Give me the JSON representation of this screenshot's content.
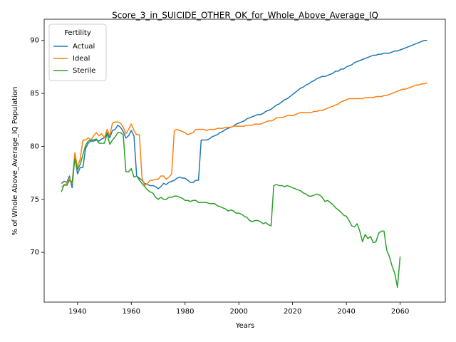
{
  "chart_data": {
    "type": "line",
    "title": "Score_3_in_SUICIDE_OTHER_OK_for_Whole_Above_Average_IQ",
    "xlabel": "Years",
    "ylabel": "% of Whole Above_Average_IQ Population",
    "legend_title": "Fertility",
    "legend": "upper left",
    "grid": false,
    "xlim": [
      1927.6,
      2076.8
    ],
    "ylim": [
      65.3,
      92.0
    ],
    "xticks": [
      1940,
      1960,
      1980,
      2000,
      2020,
      2040,
      2060
    ],
    "yticks": [
      70,
      75,
      80,
      85,
      90
    ],
    "x": [
      1934,
      1935,
      1936,
      1937,
      1938,
      1939,
      1940,
      1941,
      1942,
      1943,
      1944,
      1945,
      1946,
      1947,
      1948,
      1949,
      1950,
      1951,
      1952,
      1953,
      1954,
      1955,
      1956,
      1957,
      1958,
      1959,
      1960,
      1961,
      1962,
      1963,
      1964,
      1965,
      1966,
      1967,
      1968,
      1969,
      1970,
      1971,
      1972,
      1973,
      1974,
      1975,
      1976,
      1977,
      1978,
      1979,
      1980,
      1981,
      1982,
      1983,
      1984,
      1985,
      1986,
      1987,
      1988,
      1989,
      1990,
      1991,
      1992,
      1993,
      1994,
      1995,
      1996,
      1997,
      1998,
      1999,
      2000,
      2001,
      2002,
      2003,
      2004,
      2005,
      2006,
      2007,
      2008,
      2009,
      2010,
      2011,
      2012,
      2013,
      2014,
      2015,
      2016,
      2017,
      2018,
      2019,
      2020,
      2021,
      2022,
      2023,
      2024,
      2025,
      2026,
      2027,
      2028,
      2029,
      2030,
      2031,
      2032,
      2033,
      2034,
      2035,
      2036,
      2037,
      2038,
      2039,
      2040,
      2041,
      2042,
      2043,
      2044,
      2045,
      2046,
      2047,
      2048,
      2049,
      2050,
      2051,
      2052,
      2053,
      2054,
      2055,
      2056,
      2057,
      2058,
      2059,
      2060,
      2061,
      2062,
      2063,
      2064,
      2065,
      2066,
      2067,
      2068,
      2069,
      2070
    ],
    "series": [
      {
        "name": "Actual",
        "color": "#1f77b4",
        "values": [
          76.5,
          76.7,
          76.6,
          77.2,
          76.1,
          79.0,
          77.4,
          78.0,
          78.0,
          79.8,
          80.3,
          80.5,
          80.5,
          80.6,
          80.5,
          80.7,
          80.8,
          81.3,
          80.8,
          81.5,
          81.6,
          82.0,
          81.8,
          81.4,
          80.8,
          81.0,
          81.5,
          81.0,
          77.2,
          77.0,
          76.8,
          76.5,
          76.4,
          76.3,
          76.3,
          76.2,
          76.0,
          76.2,
          76.5,
          76.4,
          76.6,
          76.7,
          76.8,
          77.0,
          77.1,
          77.0,
          77.0,
          76.8,
          76.6,
          76.6,
          76.8,
          76.8,
          80.6,
          80.6,
          80.6,
          80.7,
          80.9,
          81.0,
          81.1,
          81.3,
          81.4,
          81.6,
          81.7,
          81.8,
          81.9,
          82.1,
          82.2,
          82.3,
          82.4,
          82.6,
          82.7,
          82.8,
          82.9,
          83.0,
          83.0,
          83.1,
          83.3,
          83.4,
          83.5,
          83.7,
          83.9,
          84.0,
          84.2,
          84.4,
          84.5,
          84.7,
          84.9,
          85.1,
          85.3,
          85.5,
          85.6,
          85.8,
          85.9,
          86.1,
          86.2,
          86.4,
          86.5,
          86.6,
          86.6,
          86.7,
          86.8,
          86.9,
          87.1,
          87.1,
          87.3,
          87.3,
          87.5,
          87.6,
          87.7,
          87.9,
          88.0,
          88.1,
          88.2,
          88.3,
          88.4,
          88.5,
          88.6,
          88.6,
          88.7,
          88.7,
          88.8,
          88.8,
          88.8,
          88.9,
          89.0,
          89.0,
          89.1,
          89.2,
          89.3,
          89.4,
          89.5,
          89.6,
          89.7,
          89.8,
          89.9,
          90.0,
          90.0
        ]
      },
      {
        "name": "Ideal",
        "color": "#ff7f0e",
        "values": [
          76.2,
          76.3,
          76.5,
          77.0,
          76.5,
          79.4,
          78.0,
          78.8,
          80.6,
          80.6,
          80.8,
          80.6,
          81.0,
          81.3,
          81.0,
          81.2,
          80.8,
          81.6,
          81.0,
          82.2,
          82.3,
          82.3,
          82.2,
          81.8,
          81.2,
          81.6,
          82.1,
          81.5,
          81.1,
          81.1,
          77.0,
          76.3,
          76.5,
          76.8,
          76.8,
          76.9,
          76.9,
          77.2,
          77.2,
          76.9,
          77.1,
          77.4,
          81.5,
          81.6,
          81.5,
          81.4,
          81.3,
          81.1,
          81.2,
          81.3,
          81.6,
          81.6,
          81.6,
          81.6,
          81.5,
          81.6,
          81.6,
          81.6,
          81.7,
          81.7,
          81.7,
          81.8,
          81.8,
          81.8,
          81.9,
          81.9,
          81.9,
          81.9,
          81.9,
          82.0,
          82.0,
          82.0,
          82.1,
          82.1,
          82.1,
          82.2,
          82.3,
          82.4,
          82.4,
          82.5,
          82.7,
          82.7,
          82.7,
          82.8,
          82.9,
          82.9,
          82.9,
          83.0,
          83.1,
          83.2,
          83.2,
          83.2,
          83.2,
          83.2,
          83.3,
          83.3,
          83.4,
          83.4,
          83.5,
          83.6,
          83.7,
          83.8,
          83.9,
          84.0,
          84.2,
          84.3,
          84.4,
          84.5,
          84.5,
          84.5,
          84.5,
          84.5,
          84.5,
          84.6,
          84.6,
          84.6,
          84.6,
          84.7,
          84.7,
          84.7,
          84.8,
          84.8,
          84.9,
          85.0,
          85.1,
          85.2,
          85.3,
          85.4,
          85.4,
          85.5,
          85.6,
          85.7,
          85.8,
          85.8,
          85.9,
          85.9,
          86.0
        ]
      },
      {
        "name": "Sterile",
        "color": "#2ca02c",
        "values": [
          75.7,
          76.4,
          76.3,
          76.8,
          76.6,
          78.8,
          77.8,
          78.3,
          79.2,
          80.1,
          80.5,
          80.6,
          80.6,
          80.7,
          80.3,
          80.3,
          80.3,
          81.2,
          80.2,
          80.6,
          80.9,
          81.3,
          81.3,
          81.1,
          77.6,
          77.6,
          77.9,
          77.1,
          77.2,
          76.8,
          76.5,
          76.2,
          75.9,
          75.7,
          75.6,
          75.2,
          75.0,
          75.2,
          75.0,
          75.0,
          75.2,
          75.2,
          75.3,
          75.3,
          75.2,
          75.1,
          74.9,
          74.9,
          74.8,
          74.9,
          74.9,
          74.7,
          74.7,
          74.7,
          74.7,
          74.6,
          74.6,
          74.6,
          74.4,
          74.3,
          74.2,
          74.1,
          73.9,
          74.0,
          73.9,
          73.7,
          73.7,
          73.6,
          73.4,
          73.3,
          73.0,
          72.9,
          73.0,
          73.0,
          72.9,
          72.7,
          72.8,
          72.6,
          72.5,
          76.3,
          76.4,
          76.3,
          76.3,
          76.2,
          76.3,
          76.2,
          76.1,
          76.0,
          75.9,
          75.8,
          75.6,
          75.5,
          75.3,
          75.3,
          75.4,
          75.5,
          75.4,
          75.2,
          74.8,
          74.9,
          74.7,
          74.5,
          74.2,
          74.0,
          73.8,
          73.5,
          73.4,
          73.0,
          72.5,
          72.4,
          72.7,
          72.0,
          71.0,
          71.7,
          71.3,
          71.5,
          70.9,
          71.0,
          71.8,
          72.0,
          72.0,
          70.2,
          69.6,
          68.7,
          68.0,
          66.7,
          69.6,
          null,
          null,
          null,
          null,
          null,
          null,
          null,
          null,
          null,
          null
        ]
      }
    ]
  }
}
